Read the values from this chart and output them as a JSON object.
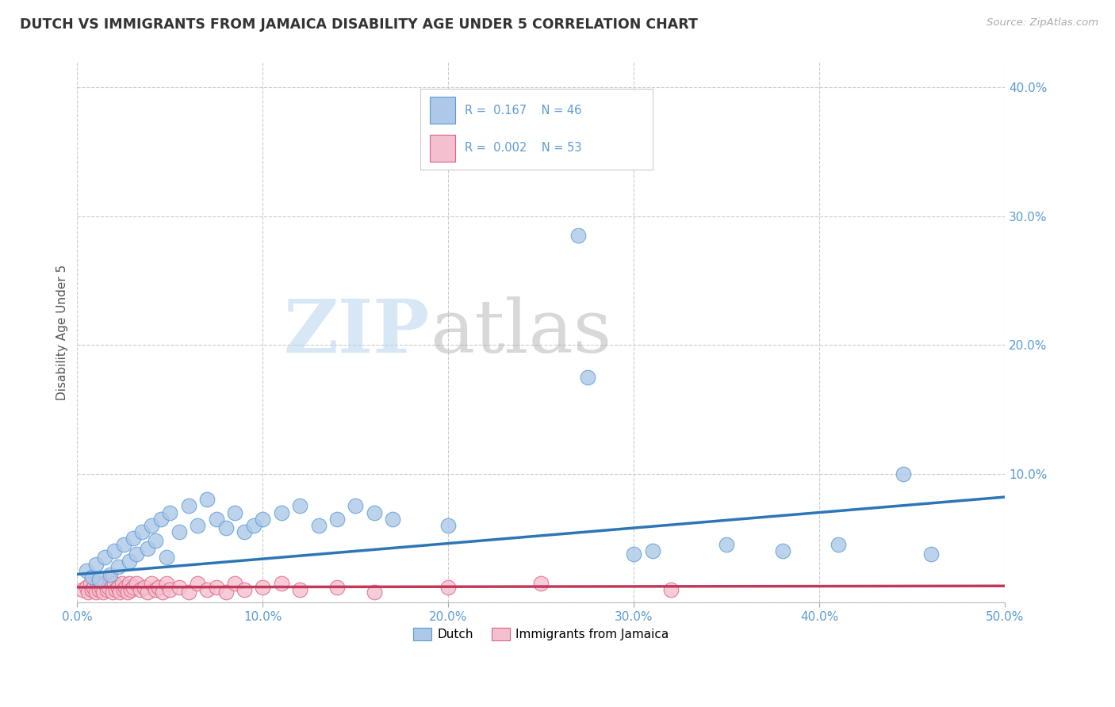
{
  "title": "DUTCH VS IMMIGRANTS FROM JAMAICA DISABILITY AGE UNDER 5 CORRELATION CHART",
  "source": "Source: ZipAtlas.com",
  "ylabel": "Disability Age Under 5",
  "xlim": [
    0.0,
    0.5
  ],
  "ylim": [
    0.0,
    0.42
  ],
  "xtick_vals": [
    0.0,
    0.1,
    0.2,
    0.3,
    0.4,
    0.5
  ],
  "ytick_vals": [
    0.0,
    0.1,
    0.2,
    0.3,
    0.4
  ],
  "dutch_R": 0.167,
  "dutch_N": 46,
  "jamaica_R": 0.002,
  "jamaica_N": 53,
  "dutch_color": "#adc8e8",
  "dutch_edge_color": "#5b9bd5",
  "dutch_line_color": "#2e75b6",
  "jamaica_color": "#f4c0cf",
  "jamaica_edge_color": "#e06080",
  "jamaica_line_color": "#c0395a",
  "background_color": "#ffffff",
  "grid_color": "#cccccc",
  "watermark_zip": "ZIP",
  "watermark_atlas": "atlas",
  "legend_dutch_label": "Dutch",
  "legend_jamaica_label": "Immigrants from Jamaica",
  "dutch_scatter_x": [
    0.005,
    0.008,
    0.01,
    0.012,
    0.015,
    0.018,
    0.02,
    0.022,
    0.025,
    0.028,
    0.03,
    0.032,
    0.035,
    0.038,
    0.04,
    0.042,
    0.045,
    0.048,
    0.05,
    0.055,
    0.06,
    0.065,
    0.07,
    0.075,
    0.08,
    0.085,
    0.09,
    0.095,
    0.1,
    0.11,
    0.12,
    0.13,
    0.14,
    0.15,
    0.16,
    0.17,
    0.27,
    0.275,
    0.31,
    0.35,
    0.38,
    0.41,
    0.445,
    0.46,
    0.3,
    0.2
  ],
  "dutch_scatter_y": [
    0.025,
    0.02,
    0.03,
    0.018,
    0.035,
    0.022,
    0.04,
    0.028,
    0.045,
    0.032,
    0.05,
    0.038,
    0.055,
    0.042,
    0.06,
    0.048,
    0.065,
    0.035,
    0.07,
    0.055,
    0.075,
    0.06,
    0.08,
    0.065,
    0.058,
    0.07,
    0.055,
    0.06,
    0.065,
    0.07,
    0.075,
    0.06,
    0.065,
    0.075,
    0.07,
    0.065,
    0.285,
    0.175,
    0.04,
    0.045,
    0.04,
    0.045,
    0.1,
    0.038,
    0.038,
    0.06
  ],
  "jamaica_scatter_x": [
    0.003,
    0.005,
    0.006,
    0.007,
    0.008,
    0.009,
    0.01,
    0.011,
    0.012,
    0.013,
    0.014,
    0.015,
    0.016,
    0.017,
    0.018,
    0.019,
    0.02,
    0.021,
    0.022,
    0.023,
    0.024,
    0.025,
    0.026,
    0.027,
    0.028,
    0.029,
    0.03,
    0.032,
    0.034,
    0.036,
    0.038,
    0.04,
    0.042,
    0.044,
    0.046,
    0.048,
    0.05,
    0.055,
    0.06,
    0.065,
    0.07,
    0.075,
    0.08,
    0.085,
    0.09,
    0.1,
    0.11,
    0.12,
    0.14,
    0.16,
    0.2,
    0.25,
    0.32
  ],
  "jamaica_scatter_y": [
    0.01,
    0.012,
    0.008,
    0.015,
    0.01,
    0.012,
    0.008,
    0.015,
    0.01,
    0.012,
    0.008,
    0.015,
    0.01,
    0.012,
    0.018,
    0.008,
    0.015,
    0.01,
    0.012,
    0.008,
    0.015,
    0.01,
    0.012,
    0.008,
    0.015,
    0.01,
    0.012,
    0.015,
    0.01,
    0.012,
    0.008,
    0.015,
    0.01,
    0.012,
    0.008,
    0.015,
    0.01,
    0.012,
    0.008,
    0.015,
    0.01,
    0.012,
    0.008,
    0.015,
    0.01,
    0.012,
    0.015,
    0.01,
    0.012,
    0.008,
    0.012,
    0.015,
    0.01
  ],
  "dutch_line_x0": 0.0,
  "dutch_line_y0": 0.022,
  "dutch_line_x1": 0.5,
  "dutch_line_y1": 0.082,
  "jamaica_line_x0": 0.0,
  "jamaica_line_y0": 0.012,
  "jamaica_line_x1": 0.5,
  "jamaica_line_y1": 0.013
}
